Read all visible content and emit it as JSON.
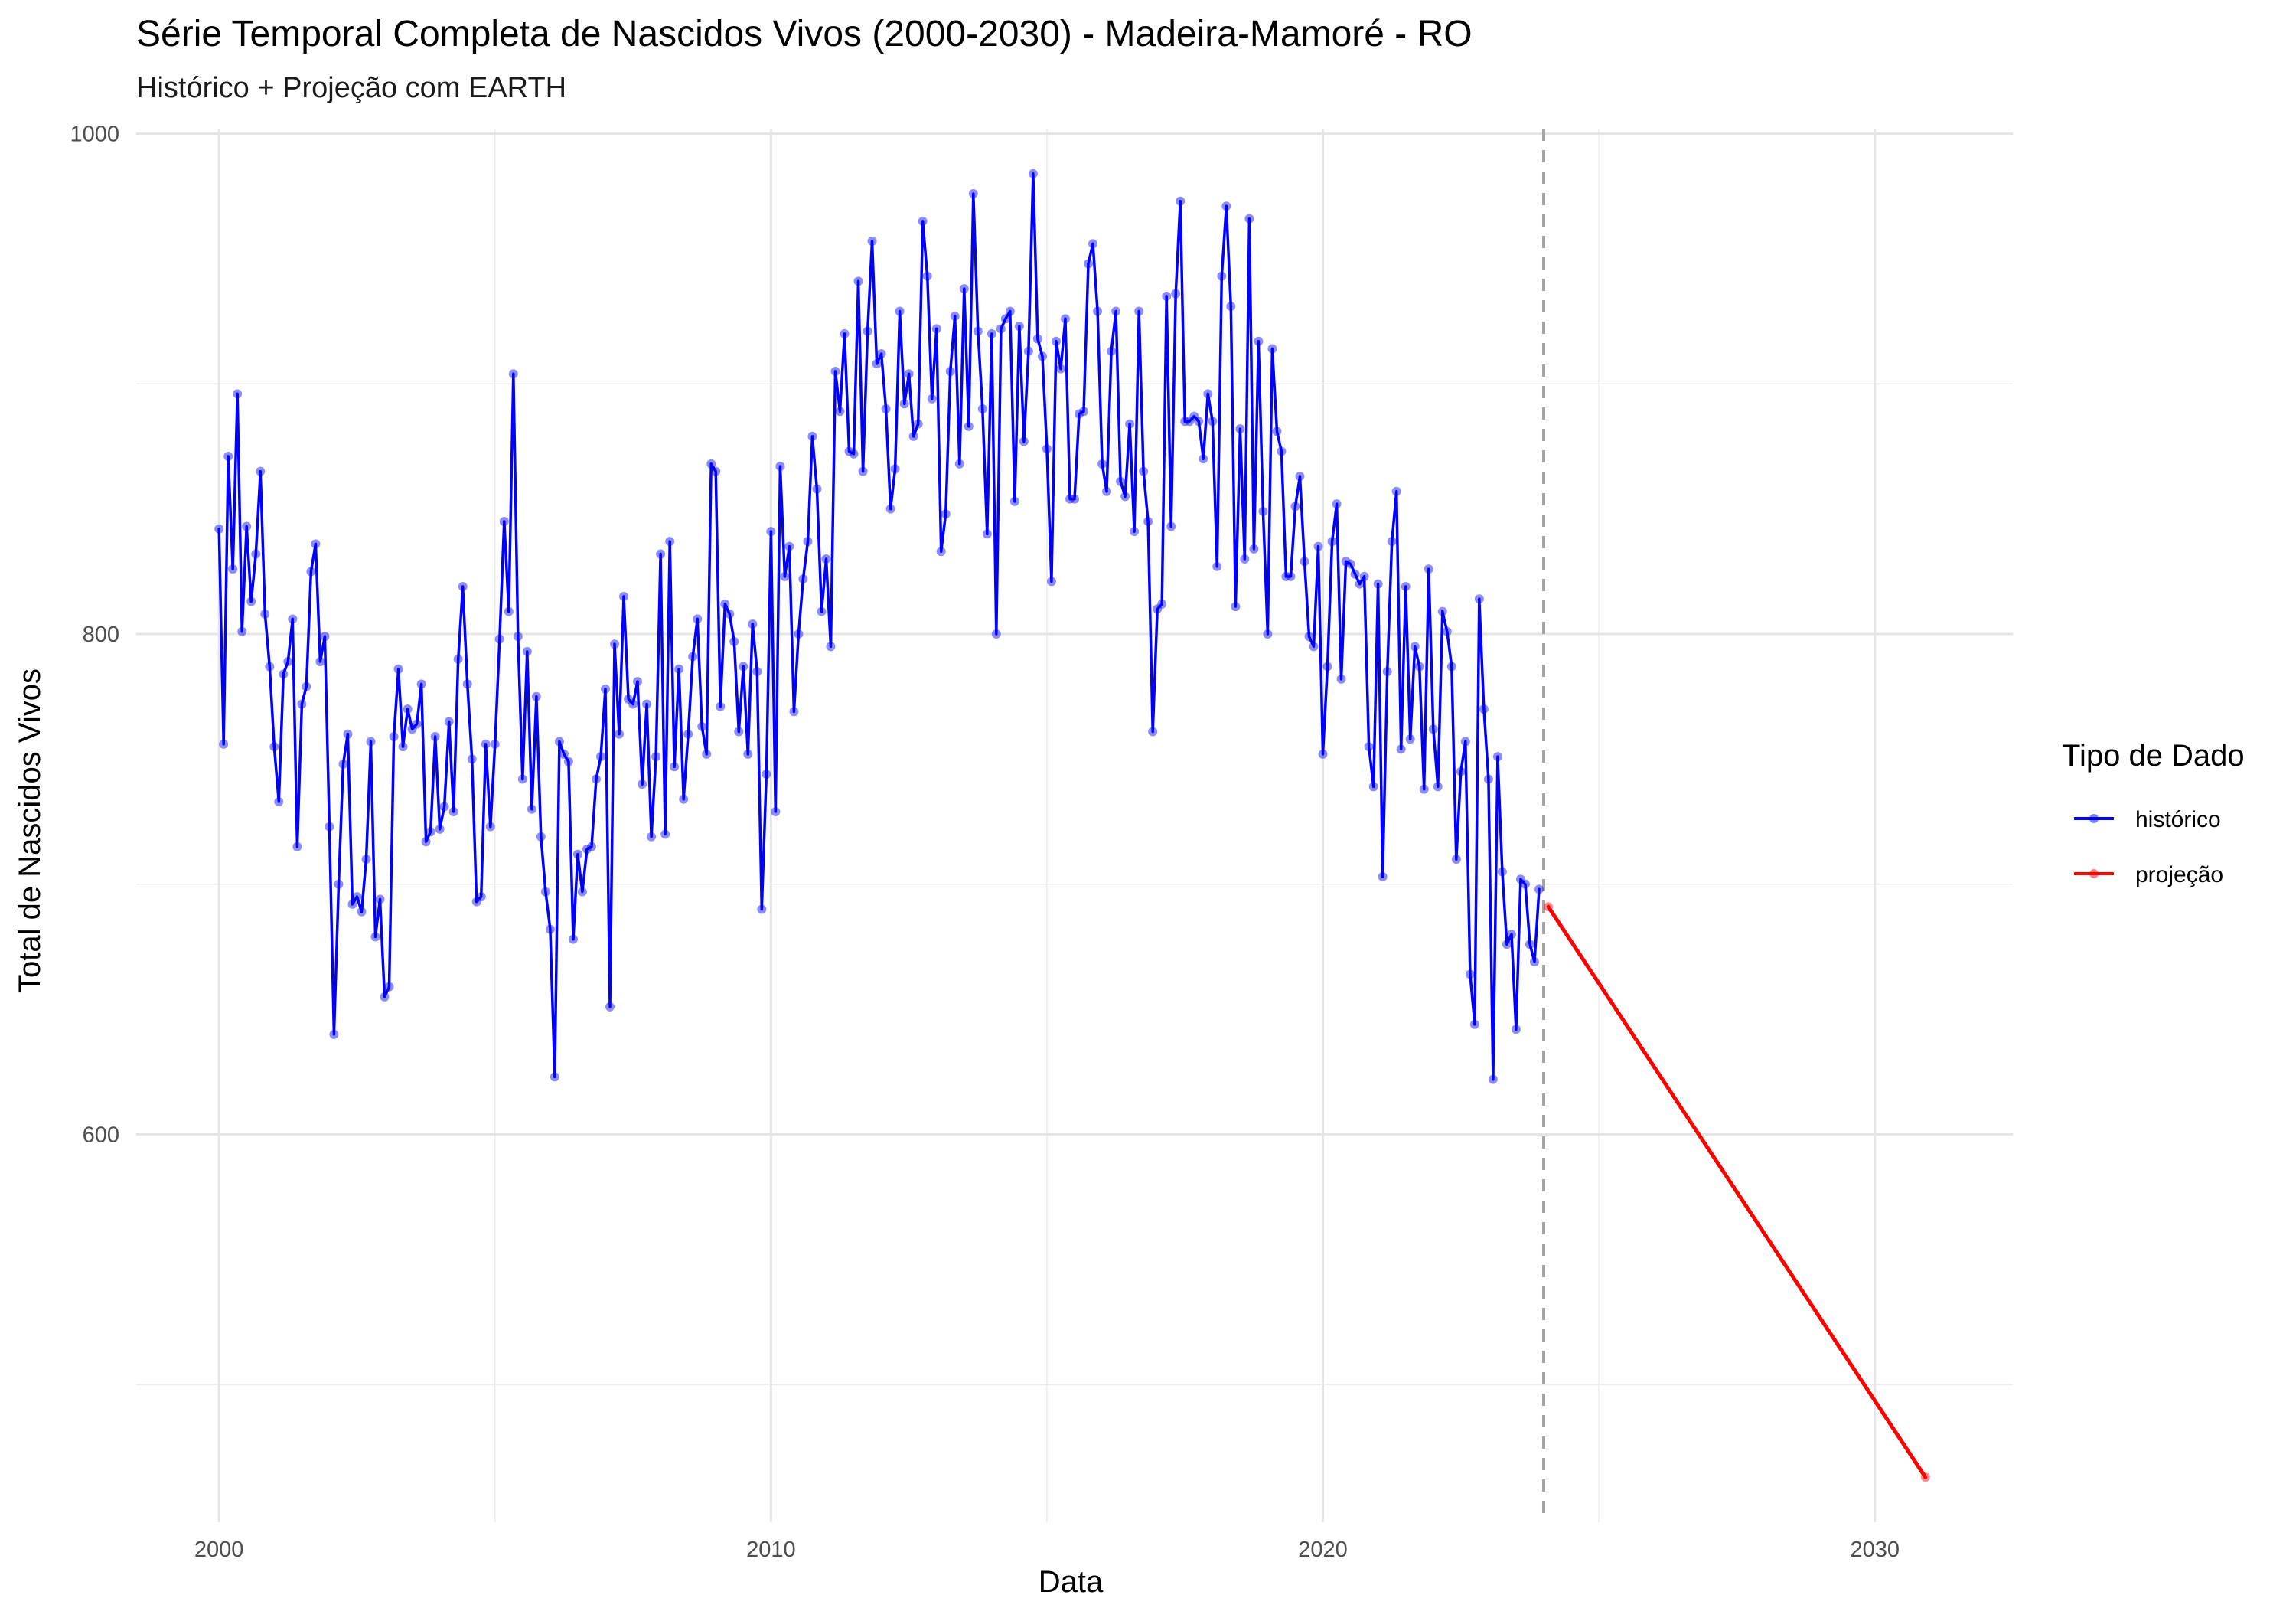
{
  "chart_data": {
    "type": "line",
    "title": "Série Temporal Completa de Nascidos Vivos (2000-2030) -  Madeira-Mamoré - RO",
    "subtitle": "Histórico + Projeção com EARTH",
    "xlabel": "Data",
    "ylabel": "Total de Nascidos Vivos",
    "x_ticks": [
      2000,
      2010,
      2020,
      2030
    ],
    "y_ticks": [
      600,
      800,
      1000
    ],
    "xlim": [
      1998.5,
      2032.5
    ],
    "ylim": [
      445,
      1002
    ],
    "grid": true,
    "forecast_start": 2024.0,
    "legend": {
      "title": "Tipo de Dado",
      "position": "right",
      "entries": [
        "histórico",
        "projeção"
      ]
    },
    "series": [
      {
        "name": "histórico",
        "color": "#0000ff",
        "x": [
          2000.0,
          2000.083,
          2000.167,
          2000.25,
          2000.333,
          2000.417,
          2000.5,
          2000.583,
          2000.667,
          2000.75,
          2000.833,
          2000.917,
          2001.0,
          2001.083,
          2001.167,
          2001.25,
          2001.333,
          2001.417,
          2001.5,
          2001.583,
          2001.667,
          2001.75,
          2001.833,
          2001.917,
          2002.0,
          2002.083,
          2002.167,
          2002.25,
          2002.333,
          2002.417,
          2002.5,
          2002.583,
          2002.667,
          2002.75,
          2002.833,
          2002.917,
          2003.0,
          2003.083,
          2003.167,
          2003.25,
          2003.333,
          2003.417,
          2003.5,
          2003.583,
          2003.667,
          2003.75,
          2003.833,
          2003.917,
          2004.0,
          2004.083,
          2004.167,
          2004.25,
          2004.333,
          2004.417,
          2004.5,
          2004.583,
          2004.667,
          2004.75,
          2004.833,
          2004.917,
          2005.0,
          2005.083,
          2005.167,
          2005.25,
          2005.333,
          2005.417,
          2005.5,
          2005.583,
          2005.667,
          2005.75,
          2005.833,
          2005.917,
          2006.0,
          2006.083,
          2006.167,
          2006.25,
          2006.333,
          2006.417,
          2006.5,
          2006.583,
          2006.667,
          2006.75,
          2006.833,
          2006.917,
          2007.0,
          2007.083,
          2007.167,
          2007.25,
          2007.333,
          2007.417,
          2007.5,
          2007.583,
          2007.667,
          2007.75,
          2007.833,
          2007.917,
          2008.0,
          2008.083,
          2008.167,
          2008.25,
          2008.333,
          2008.417,
          2008.5,
          2008.583,
          2008.667,
          2008.75,
          2008.833,
          2008.917,
          2009.0,
          2009.083,
          2009.167,
          2009.25,
          2009.333,
          2009.417,
          2009.5,
          2009.583,
          2009.667,
          2009.75,
          2009.833,
          2009.917,
          2010.0,
          2010.083,
          2010.167,
          2010.25,
          2010.333,
          2010.417,
          2010.5,
          2010.583,
          2010.667,
          2010.75,
          2010.833,
          2010.917,
          2011.0,
          2011.083,
          2011.167,
          2011.25,
          2011.333,
          2011.417,
          2011.5,
          2011.583,
          2011.667,
          2011.75,
          2011.833,
          2011.917,
          2012.0,
          2012.083,
          2012.167,
          2012.25,
          2012.333,
          2012.417,
          2012.5,
          2012.583,
          2012.667,
          2012.75,
          2012.833,
          2012.917,
          2013.0,
          2013.083,
          2013.167,
          2013.25,
          2013.333,
          2013.417,
          2013.5,
          2013.583,
          2013.667,
          2013.75,
          2013.833,
          2013.917,
          2014.0,
          2014.083,
          2014.167,
          2014.25,
          2014.333,
          2014.417,
          2014.5,
          2014.583,
          2014.667,
          2014.75,
          2014.833,
          2014.917,
          2015.0,
          2015.083,
          2015.167,
          2015.25,
          2015.333,
          2015.417,
          2015.5,
          2015.583,
          2015.667,
          2015.75,
          2015.833,
          2015.917,
          2016.0,
          2016.083,
          2016.167,
          2016.25,
          2016.333,
          2016.417,
          2016.5,
          2016.583,
          2016.667,
          2016.75,
          2016.833,
          2016.917,
          2017.0,
          2017.083,
          2017.167,
          2017.25,
          2017.333,
          2017.417,
          2017.5,
          2017.583,
          2017.667,
          2017.75,
          2017.833,
          2017.917,
          2018.0,
          2018.083,
          2018.167,
          2018.25,
          2018.333,
          2018.417,
          2018.5,
          2018.583,
          2018.667,
          2018.75,
          2018.833,
          2018.917,
          2019.0,
          2019.083,
          2019.167,
          2019.25,
          2019.333,
          2019.417,
          2019.5,
          2019.583,
          2019.667,
          2019.75,
          2019.833,
          2019.917,
          2020.0,
          2020.083,
          2020.167,
          2020.25,
          2020.333,
          2020.417,
          2020.5,
          2020.583,
          2020.667,
          2020.75,
          2020.833,
          2020.917,
          2021.0,
          2021.083,
          2021.167,
          2021.25,
          2021.333,
          2021.417,
          2021.5,
          2021.583,
          2021.667,
          2021.75,
          2021.833,
          2021.917,
          2022.0,
          2022.083,
          2022.167,
          2022.25,
          2022.333,
          2022.417,
          2022.5,
          2022.583,
          2022.667,
          2022.75,
          2022.833,
          2022.917,
          2023.0,
          2023.083,
          2023.167,
          2023.25,
          2023.333,
          2023.417,
          2023.5,
          2023.583,
          2023.667,
          2023.75,
          2023.833,
          2023.917
        ],
        "values": [
          842,
          756,
          871,
          826,
          896,
          801,
          843,
          813,
          832,
          865,
          808,
          787,
          755,
          733,
          784,
          789,
          806,
          715,
          772,
          779,
          825,
          836,
          789,
          799,
          723,
          640,
          700,
          748,
          760,
          692,
          695,
          689,
          710,
          757,
          679,
          694,
          655,
          659,
          759,
          786,
          755,
          770,
          762,
          764,
          780,
          717,
          721,
          759,
          722,
          731,
          765,
          729,
          790,
          819,
          780,
          750,
          693,
          695,
          756,
          723,
          756,
          798,
          845,
          809,
          904,
          799,
          742,
          793,
          730,
          775,
          719,
          697,
          682,
          623,
          757,
          752,
          749,
          678,
          712,
          697,
          714,
          715,
          742,
          751,
          778,
          651,
          796,
          760,
          815,
          774,
          772,
          781,
          740,
          772,
          719,
          751,
          832,
          720,
          837,
          747,
          786,
          734,
          760,
          791,
          806,
          763,
          752,
          868,
          865,
          771,
          812,
          808,
          797,
          761,
          787,
          752,
          804,
          785,
          690,
          744,
          841,
          729,
          867,
          823,
          835,
          769,
          800,
          822,
          837,
          879,
          858,
          809,
          830,
          795,
          905,
          889,
          920,
          873,
          872,
          941,
          865,
          921,
          957,
          908,
          912,
          890,
          850,
          866,
          929,
          892,
          904,
          879,
          884,
          965,
          943,
          894,
          922,
          833,
          848,
          905,
          927,
          868,
          938,
          883,
          976,
          921,
          890,
          840,
          920,
          800,
          922,
          926,
          929,
          853,
          923,
          877,
          913,
          984,
          918,
          911,
          874,
          821,
          917,
          906,
          926,
          854,
          854,
          888,
          889,
          948,
          956,
          929,
          868,
          857,
          913,
          929,
          861,
          855,
          884,
          841,
          929,
          865,
          845,
          761,
          810,
          812,
          935,
          843,
          936,
          973,
          885,
          885,
          887,
          885,
          870,
          896,
          885,
          827,
          943,
          971,
          931,
          811,
          882,
          830,
          966,
          834,
          917,
          849,
          800,
          914,
          881,
          873,
          823,
          823,
          851,
          863,
          829,
          799,
          795,
          835,
          752,
          787,
          837,
          852,
          782,
          829,
          828,
          824,
          820,
          823,
          755,
          739,
          820,
          703,
          785,
          837,
          857,
          754,
          819,
          758,
          795,
          787,
          738,
          826,
          762,
          739,
          809,
          801,
          787,
          710,
          745,
          757,
          664,
          644,
          814,
          770,
          742,
          622,
          751,
          705,
          676,
          680,
          642,
          702,
          700,
          676,
          669,
          698
        ]
      },
      {
        "name": "projeção",
        "color": "#ff0000",
        "x": [
          2024.083,
          2030.917
        ],
        "values": [
          691,
          463
        ]
      }
    ]
  }
}
